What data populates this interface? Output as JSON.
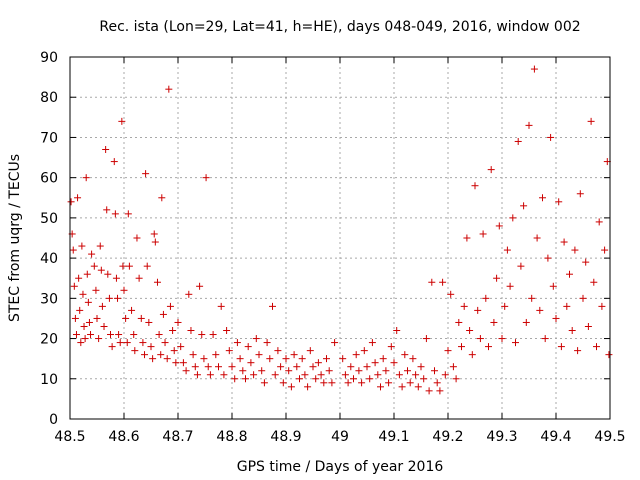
{
  "chart_data": {
    "type": "scatter",
    "title": "Rec. ista (Lon=29, Lat=41, h=HE), days 048-049, 2016, window 002",
    "xlabel": "GPS time / Days of year 2016",
    "ylabel": "STEC from uqrg / TECUs",
    "xlim": [
      48.5,
      49.5
    ],
    "ylim": [
      0,
      90
    ],
    "xticks": [
      "48.5",
      "48.6",
      "48.7",
      "48.8",
      "48.9",
      "49",
      "49.1",
      "49.2",
      "49.3",
      "49.4",
      "49.5"
    ],
    "yticks": [
      "0",
      "10",
      "20",
      "30",
      "40",
      "50",
      "60",
      "70",
      "80",
      "90"
    ],
    "grid": true,
    "marker": "plus",
    "color": "#cc0000",
    "series": [
      {
        "points": [
          [
            48.502,
            54
          ],
          [
            48.504,
            46
          ],
          [
            48.506,
            42
          ],
          [
            48.508,
            33
          ],
          [
            48.51,
            25
          ],
          [
            48.512,
            21
          ],
          [
            48.514,
            55
          ],
          [
            48.516,
            35
          ],
          [
            48.518,
            27
          ],
          [
            48.52,
            19
          ],
          [
            48.522,
            43
          ],
          [
            48.524,
            31
          ],
          [
            48.526,
            23
          ],
          [
            48.528,
            20
          ],
          [
            48.53,
            60
          ],
          [
            48.532,
            36
          ],
          [
            48.534,
            29
          ],
          [
            48.536,
            24
          ],
          [
            48.538,
            21
          ],
          [
            48.54,
            41
          ],
          [
            48.545,
            38
          ],
          [
            48.548,
            32
          ],
          [
            48.55,
            25
          ],
          [
            48.553,
            20
          ],
          [
            48.556,
            43
          ],
          [
            48.558,
            37
          ],
          [
            48.56,
            28
          ],
          [
            48.563,
            23
          ],
          [
            48.566,
            67
          ],
          [
            48.568,
            52
          ],
          [
            48.57,
            36
          ],
          [
            48.573,
            30
          ],
          [
            48.575,
            21
          ],
          [
            48.578,
            18
          ],
          [
            48.582,
            64
          ],
          [
            48.584,
            51
          ],
          [
            48.586,
            35
          ],
          [
            48.588,
            30
          ],
          [
            48.59,
            21
          ],
          [
            48.593,
            19
          ],
          [
            48.596,
            74
          ],
          [
            48.598,
            38
          ],
          [
            48.6,
            32
          ],
          [
            48.603,
            25
          ],
          [
            48.606,
            19
          ],
          [
            48.608,
            51
          ],
          [
            48.61,
            38
          ],
          [
            48.614,
            27
          ],
          [
            48.618,
            21
          ],
          [
            48.62,
            17
          ],
          [
            48.624,
            45
          ],
          [
            48.628,
            35
          ],
          [
            48.632,
            25
          ],
          [
            48.635,
            19
          ],
          [
            48.638,
            16
          ],
          [
            48.64,
            61
          ],
          [
            48.643,
            38
          ],
          [
            48.646,
            24
          ],
          [
            48.65,
            18
          ],
          [
            48.653,
            15
          ],
          [
            48.656,
            46
          ],
          [
            48.658,
            44
          ],
          [
            48.662,
            34
          ],
          [
            48.665,
            21
          ],
          [
            48.668,
            16
          ],
          [
            48.67,
            55
          ],
          [
            48.673,
            26
          ],
          [
            48.676,
            19
          ],
          [
            48.68,
            15
          ],
          [
            48.683,
            82
          ],
          [
            48.686,
            28
          ],
          [
            48.69,
            22
          ],
          [
            48.693,
            17
          ],
          [
            48.696,
            14
          ],
          [
            48.7,
            24
          ],
          [
            48.705,
            18
          ],
          [
            48.71,
            14
          ],
          [
            48.715,
            12
          ],
          [
            48.72,
            31
          ],
          [
            48.724,
            22
          ],
          [
            48.728,
            16
          ],
          [
            48.732,
            13
          ],
          [
            48.736,
            11
          ],
          [
            48.74,
            33
          ],
          [
            48.744,
            21
          ],
          [
            48.748,
            15
          ],
          [
            48.752,
            60
          ],
          [
            48.756,
            13
          ],
          [
            48.76,
            11
          ],
          [
            48.765,
            21
          ],
          [
            48.77,
            16
          ],
          [
            48.775,
            13
          ],
          [
            48.78,
            28
          ],
          [
            48.785,
            11
          ],
          [
            48.79,
            22
          ],
          [
            48.795,
            17
          ],
          [
            48.8,
            13
          ],
          [
            48.805,
            10
          ],
          [
            48.81,
            19
          ],
          [
            48.815,
            15
          ],
          [
            48.82,
            12
          ],
          [
            48.825,
            10
          ],
          [
            48.83,
            18
          ],
          [
            48.835,
            14
          ],
          [
            48.84,
            11
          ],
          [
            48.845,
            20
          ],
          [
            48.85,
            16
          ],
          [
            48.855,
            12
          ],
          [
            48.86,
            9
          ],
          [
            48.865,
            19
          ],
          [
            48.87,
            15
          ],
          [
            48.875,
            28
          ],
          [
            48.88,
            11
          ],
          [
            48.885,
            17
          ],
          [
            48.89,
            13
          ],
          [
            48.895,
            9
          ],
          [
            48.9,
            15
          ],
          [
            48.905,
            12
          ],
          [
            48.91,
            8
          ],
          [
            48.915,
            16
          ],
          [
            48.92,
            13
          ],
          [
            48.925,
            10
          ],
          [
            48.93,
            15
          ],
          [
            48.935,
            11
          ],
          [
            48.94,
            8
          ],
          [
            48.945,
            17
          ],
          [
            48.95,
            13
          ],
          [
            48.955,
            10
          ],
          [
            48.96,
            14
          ],
          [
            48.965,
            11
          ],
          [
            48.97,
            9
          ],
          [
            48.975,
            15
          ],
          [
            48.98,
            12
          ],
          [
            48.985,
            9
          ],
          [
            48.99,
            19
          ],
          [
            49.005,
            15
          ],
          [
            49.01,
            11
          ],
          [
            49.015,
            9
          ],
          [
            49.02,
            13
          ],
          [
            49.025,
            10
          ],
          [
            49.03,
            16
          ],
          [
            49.035,
            12
          ],
          [
            49.04,
            9
          ],
          [
            49.045,
            17
          ],
          [
            49.05,
            13
          ],
          [
            49.055,
            10
          ],
          [
            49.06,
            19
          ],
          [
            49.065,
            14
          ],
          [
            49.07,
            11
          ],
          [
            49.075,
            8
          ],
          [
            49.08,
            15
          ],
          [
            49.085,
            12
          ],
          [
            49.09,
            9
          ],
          [
            49.095,
            18
          ],
          [
            49.1,
            14
          ],
          [
            49.105,
            22
          ],
          [
            49.11,
            11
          ],
          [
            49.115,
            8
          ],
          [
            49.12,
            16
          ],
          [
            49.125,
            12
          ],
          [
            49.13,
            9
          ],
          [
            49.135,
            15
          ],
          [
            49.14,
            11
          ],
          [
            49.145,
            8
          ],
          [
            49.15,
            13
          ],
          [
            49.155,
            10
          ],
          [
            49.16,
            20
          ],
          [
            49.165,
            7
          ],
          [
            49.17,
            34
          ],
          [
            49.175,
            12
          ],
          [
            49.18,
            9
          ],
          [
            49.185,
            7
          ],
          [
            49.19,
            34
          ],
          [
            49.195,
            11
          ],
          [
            49.2,
            17
          ],
          [
            49.205,
            31
          ],
          [
            49.21,
            13
          ],
          [
            49.215,
            10
          ],
          [
            49.22,
            24
          ],
          [
            49.225,
            18
          ],
          [
            49.23,
            28
          ],
          [
            49.235,
            45
          ],
          [
            49.24,
            22
          ],
          [
            49.245,
            16
          ],
          [
            49.25,
            58
          ],
          [
            49.255,
            27
          ],
          [
            49.26,
            20
          ],
          [
            49.265,
            46
          ],
          [
            49.27,
            30
          ],
          [
            49.275,
            18
          ],
          [
            49.28,
            62
          ],
          [
            49.285,
            24
          ],
          [
            49.29,
            35
          ],
          [
            49.295,
            48
          ],
          [
            49.3,
            20
          ],
          [
            49.305,
            28
          ],
          [
            49.31,
            42
          ],
          [
            49.315,
            33
          ],
          [
            49.32,
            50
          ],
          [
            49.325,
            19
          ],
          [
            49.33,
            69
          ],
          [
            49.335,
            38
          ],
          [
            49.34,
            53
          ],
          [
            49.345,
            24
          ],
          [
            49.35,
            73
          ],
          [
            49.355,
            30
          ],
          [
            49.36,
            87
          ],
          [
            49.365,
            45
          ],
          [
            49.37,
            27
          ],
          [
            49.375,
            55
          ],
          [
            49.38,
            20
          ],
          [
            49.385,
            40
          ],
          [
            49.39,
            70
          ],
          [
            49.395,
            33
          ],
          [
            49.4,
            25
          ],
          [
            49.405,
            54
          ],
          [
            49.41,
            18
          ],
          [
            49.415,
            44
          ],
          [
            49.42,
            28
          ],
          [
            49.425,
            36
          ],
          [
            49.43,
            22
          ],
          [
            49.435,
            42
          ],
          [
            49.44,
            17
          ],
          [
            49.445,
            56
          ],
          [
            49.45,
            30
          ],
          [
            49.455,
            39
          ],
          [
            49.46,
            23
          ],
          [
            49.465,
            74
          ],
          [
            49.47,
            34
          ],
          [
            49.475,
            18
          ],
          [
            49.48,
            49
          ],
          [
            49.485,
            28
          ],
          [
            49.49,
            42
          ],
          [
            49.495,
            64
          ],
          [
            49.498,
            16
          ]
        ]
      }
    ]
  }
}
